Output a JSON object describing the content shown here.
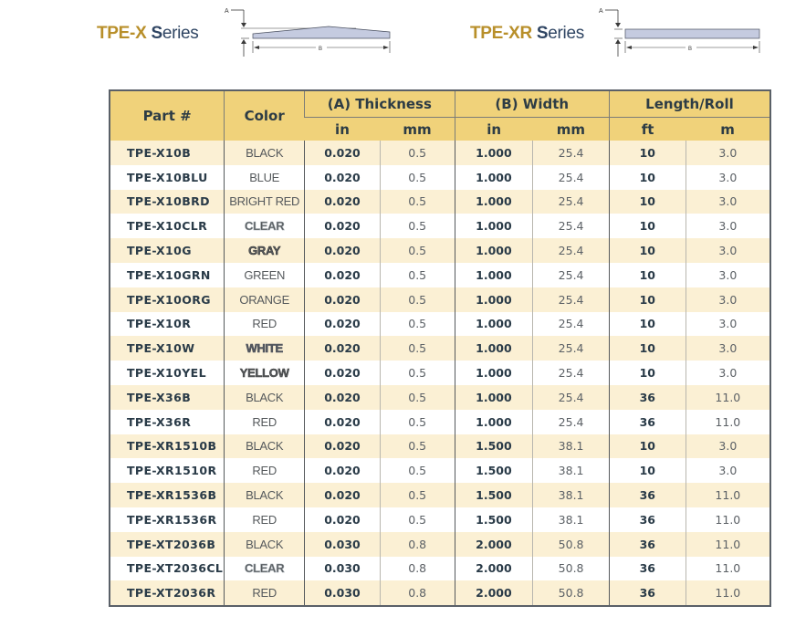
{
  "headers": {
    "series_x": {
      "code": "TPE-X",
      "word_cap": "S",
      "word_rest": "eries"
    },
    "series_xr": {
      "code": "TPE-XR",
      "word_cap": "S",
      "word_rest": "eries"
    }
  },
  "diagrams": {
    "x": {
      "label_a": "A",
      "label_b": "B",
      "shape": "tapered-strip"
    },
    "xr": {
      "label_a": "A",
      "label_b": "B",
      "shape": "rectangular-strip"
    }
  },
  "table": {
    "columns": {
      "part": "Part #",
      "color": "Color",
      "thickness": "(A) Thickness",
      "width": "(B) Width",
      "length": "Length/Roll",
      "thickness_in": "in",
      "thickness_mm": "mm",
      "width_in": "in",
      "width_mm": "mm",
      "length_ft": "ft",
      "length_m": "m"
    },
    "rows": [
      {
        "part": "TPE-X10B",
        "color": "BLACK",
        "color_key": "black",
        "t_in": "0.020",
        "t_mm": "0.5",
        "w_in": "1.000",
        "w_mm": "25.4",
        "l_ft": "10",
        "l_m": "3.0"
      },
      {
        "part": "TPE-X10BLU",
        "color": "BLUE",
        "color_key": "blue",
        "t_in": "0.020",
        "t_mm": "0.5",
        "w_in": "1.000",
        "w_mm": "25.4",
        "l_ft": "10",
        "l_m": "3.0"
      },
      {
        "part": "TPE-X10BRD",
        "color": "BRIGHT RED",
        "color_key": "brightred",
        "t_in": "0.020",
        "t_mm": "0.5",
        "w_in": "1.000",
        "w_mm": "25.4",
        "l_ft": "10",
        "l_m": "3.0"
      },
      {
        "part": "TPE-X10CLR",
        "color": "CLEAR",
        "color_key": "clear",
        "t_in": "0.020",
        "t_mm": "0.5",
        "w_in": "1.000",
        "w_mm": "25.4",
        "l_ft": "10",
        "l_m": "3.0"
      },
      {
        "part": "TPE-X10G",
        "color": "GRAY",
        "color_key": "gray",
        "t_in": "0.020",
        "t_mm": "0.5",
        "w_in": "1.000",
        "w_mm": "25.4",
        "l_ft": "10",
        "l_m": "3.0"
      },
      {
        "part": "TPE-X10GRN",
        "color": "GREEN",
        "color_key": "green",
        "t_in": "0.020",
        "t_mm": "0.5",
        "w_in": "1.000",
        "w_mm": "25.4",
        "l_ft": "10",
        "l_m": "3.0"
      },
      {
        "part": "TPE-X10ORG",
        "color": "ORANGE",
        "color_key": "orange",
        "t_in": "0.020",
        "t_mm": "0.5",
        "w_in": "1.000",
        "w_mm": "25.4",
        "l_ft": "10",
        "l_m": "3.0"
      },
      {
        "part": "TPE-X10R",
        "color": "RED",
        "color_key": "red",
        "t_in": "0.020",
        "t_mm": "0.5",
        "w_in": "1.000",
        "w_mm": "25.4",
        "l_ft": "10",
        "l_m": "3.0"
      },
      {
        "part": "TPE-X10W",
        "color": "WHITE",
        "color_key": "white",
        "t_in": "0.020",
        "t_mm": "0.5",
        "w_in": "1.000",
        "w_mm": "25.4",
        "l_ft": "10",
        "l_m": "3.0"
      },
      {
        "part": "TPE-X10YEL",
        "color": "YELLOW",
        "color_key": "yellow",
        "t_in": "0.020",
        "t_mm": "0.5",
        "w_in": "1.000",
        "w_mm": "25.4",
        "l_ft": "10",
        "l_m": "3.0"
      },
      {
        "part": "TPE-X36B",
        "color": "BLACK",
        "color_key": "black",
        "t_in": "0.020",
        "t_mm": "0.5",
        "w_in": "1.000",
        "w_mm": "25.4",
        "l_ft": "36",
        "l_m": "11.0"
      },
      {
        "part": "TPE-X36R",
        "color": "RED",
        "color_key": "red",
        "t_in": "0.020",
        "t_mm": "0.5",
        "w_in": "1.000",
        "w_mm": "25.4",
        "l_ft": "36",
        "l_m": "11.0"
      },
      {
        "part": "TPE-XR1510B",
        "color": "BLACK",
        "color_key": "black",
        "t_in": "0.020",
        "t_mm": "0.5",
        "w_in": "1.500",
        "w_mm": "38.1",
        "l_ft": "10",
        "l_m": "3.0"
      },
      {
        "part": "TPE-XR1510R",
        "color": "RED",
        "color_key": "red",
        "t_in": "0.020",
        "t_mm": "0.5",
        "w_in": "1.500",
        "w_mm": "38.1",
        "l_ft": "10",
        "l_m": "3.0"
      },
      {
        "part": "TPE-XR1536B",
        "color": "BLACK",
        "color_key": "black",
        "t_in": "0.020",
        "t_mm": "0.5",
        "w_in": "1.500",
        "w_mm": "38.1",
        "l_ft": "36",
        "l_m": "11.0"
      },
      {
        "part": "TPE-XR1536R",
        "color": "RED",
        "color_key": "red",
        "t_in": "0.020",
        "t_mm": "0.5",
        "w_in": "1.500",
        "w_mm": "38.1",
        "l_ft": "36",
        "l_m": "11.0"
      },
      {
        "part": "TPE-XT2036B",
        "color": "BLACK",
        "color_key": "black",
        "t_in": "0.030",
        "t_mm": "0.8",
        "w_in": "2.000",
        "w_mm": "50.8",
        "l_ft": "36",
        "l_m": "11.0"
      },
      {
        "part": "TPE-XT2036CL",
        "color": "CLEAR",
        "color_key": "clear",
        "t_in": "0.030",
        "t_mm": "0.8",
        "w_in": "2.000",
        "w_mm": "50.8",
        "l_ft": "36",
        "l_m": "11.0"
      },
      {
        "part": "TPE-XT2036R",
        "color": "RED",
        "color_key": "red",
        "t_in": "0.030",
        "t_mm": "0.8",
        "w_in": "2.000",
        "w_mm": "50.8",
        "l_ft": "36",
        "l_m": "11.0"
      }
    ]
  },
  "colors": {
    "header_bg": "#f0d27a",
    "row_alt_bg": "#fbf0d4",
    "series_code": "#b88f2a",
    "series_word": "#2f4563",
    "diagram_fill": "#c5cbe0"
  }
}
